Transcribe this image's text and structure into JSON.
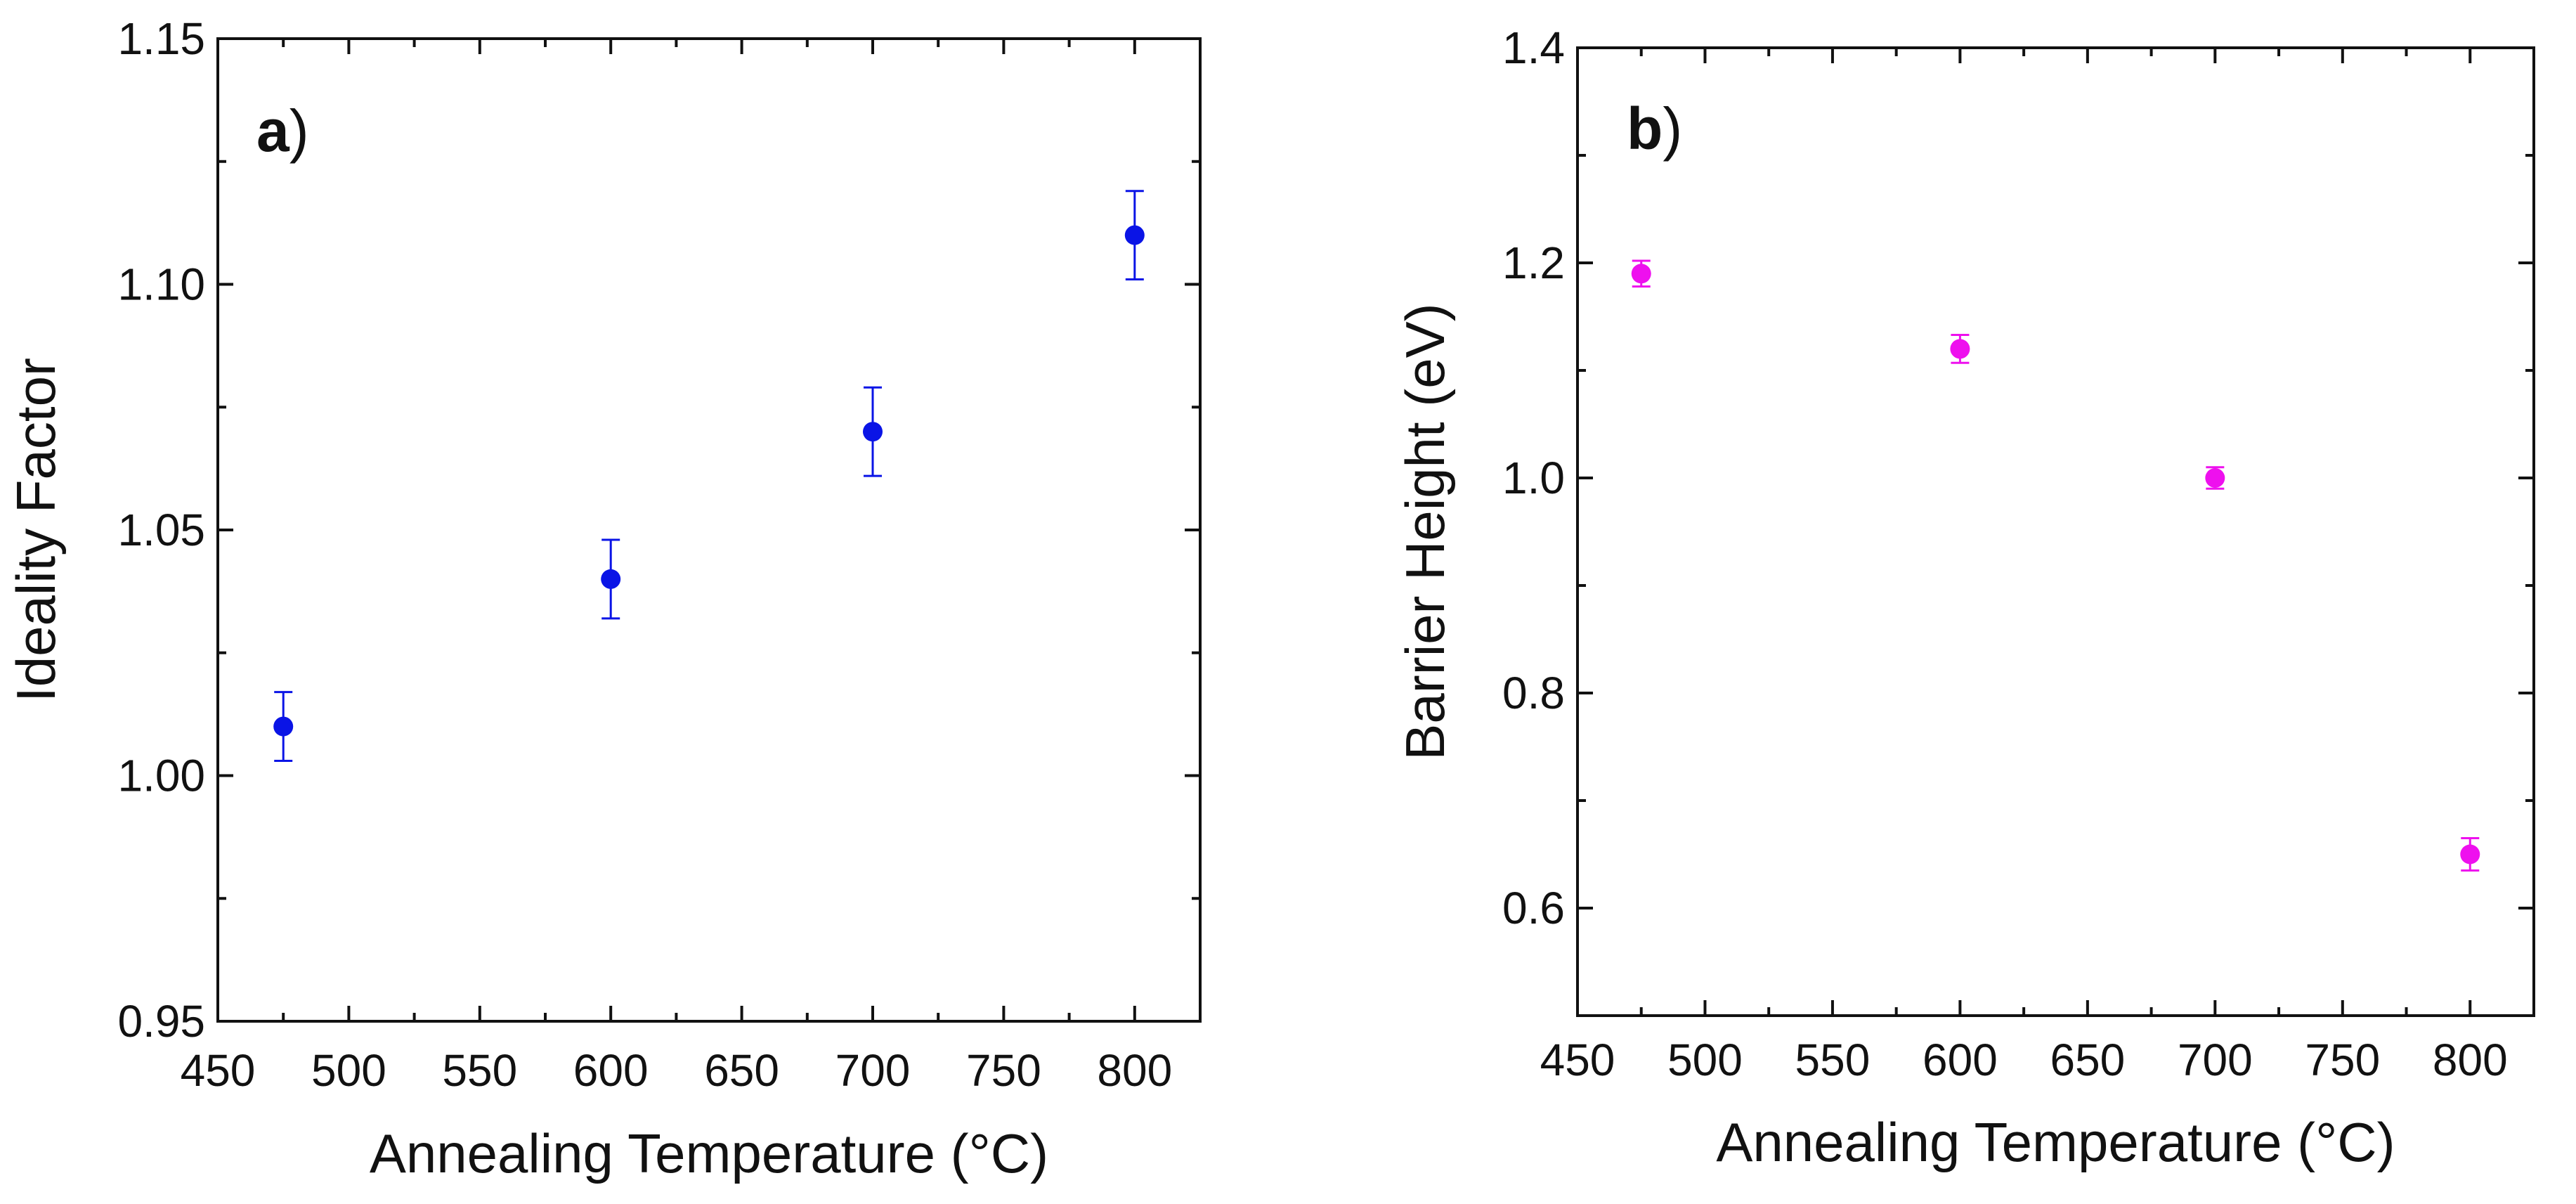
{
  "chart_data": [
    {
      "type": "scatter",
      "panel_label": "a",
      "panel_label_suffix": ")",
      "title": "",
      "xlabel": "Annealing Temperature (°C)",
      "ylabel": "Ideality Factor",
      "xlim": [
        450,
        825
      ],
      "ylim": [
        0.95,
        1.15
      ],
      "xticks": [
        450,
        500,
        550,
        600,
        650,
        700,
        750,
        800
      ],
      "xtick_labels": [
        "450",
        "500",
        "550",
        "600",
        "650",
        "700",
        "750",
        "800"
      ],
      "yticks": [
        0.95,
        1.0,
        1.05,
        1.1,
        1.15
      ],
      "ytick_labels": [
        "0.95",
        "1.00",
        "1.05",
        "1.10",
        "1.15"
      ],
      "marker_color": "#0a14e6",
      "grid": false,
      "series": [
        {
          "name": "Ideality Factor",
          "x": [
            475,
            600,
            700,
            800
          ],
          "y": [
            1.01,
            1.04,
            1.07,
            1.11
          ],
          "err": [
            0.007,
            0.008,
            0.009,
            0.009
          ]
        }
      ]
    },
    {
      "type": "scatter",
      "panel_label": "b",
      "panel_label_suffix": ")",
      "title": "",
      "xlabel": "Annealing Temperature (°C)",
      "ylabel": "Barrier Height (eV)",
      "xlim": [
        450,
        825
      ],
      "ylim": [
        0.5,
        1.4
      ],
      "xticks": [
        450,
        500,
        550,
        600,
        650,
        700,
        750,
        800
      ],
      "xtick_labels": [
        "450",
        "500",
        "550",
        "600",
        "650",
        "700",
        "750",
        "800"
      ],
      "yticks": [
        0.6,
        0.8,
        1.0,
        1.2,
        1.4
      ],
      "ytick_labels": [
        "0.6",
        "0.8",
        "1.0",
        "1.2",
        "1.4"
      ],
      "marker_color": "#ee10ee",
      "grid": false,
      "series": [
        {
          "name": "Barrier Height",
          "x": [
            475,
            600,
            700,
            800
          ],
          "y": [
            1.19,
            1.12,
            1.0,
            0.65
          ],
          "err": [
            0.012,
            0.013,
            0.01,
            0.015
          ]
        }
      ]
    }
  ]
}
